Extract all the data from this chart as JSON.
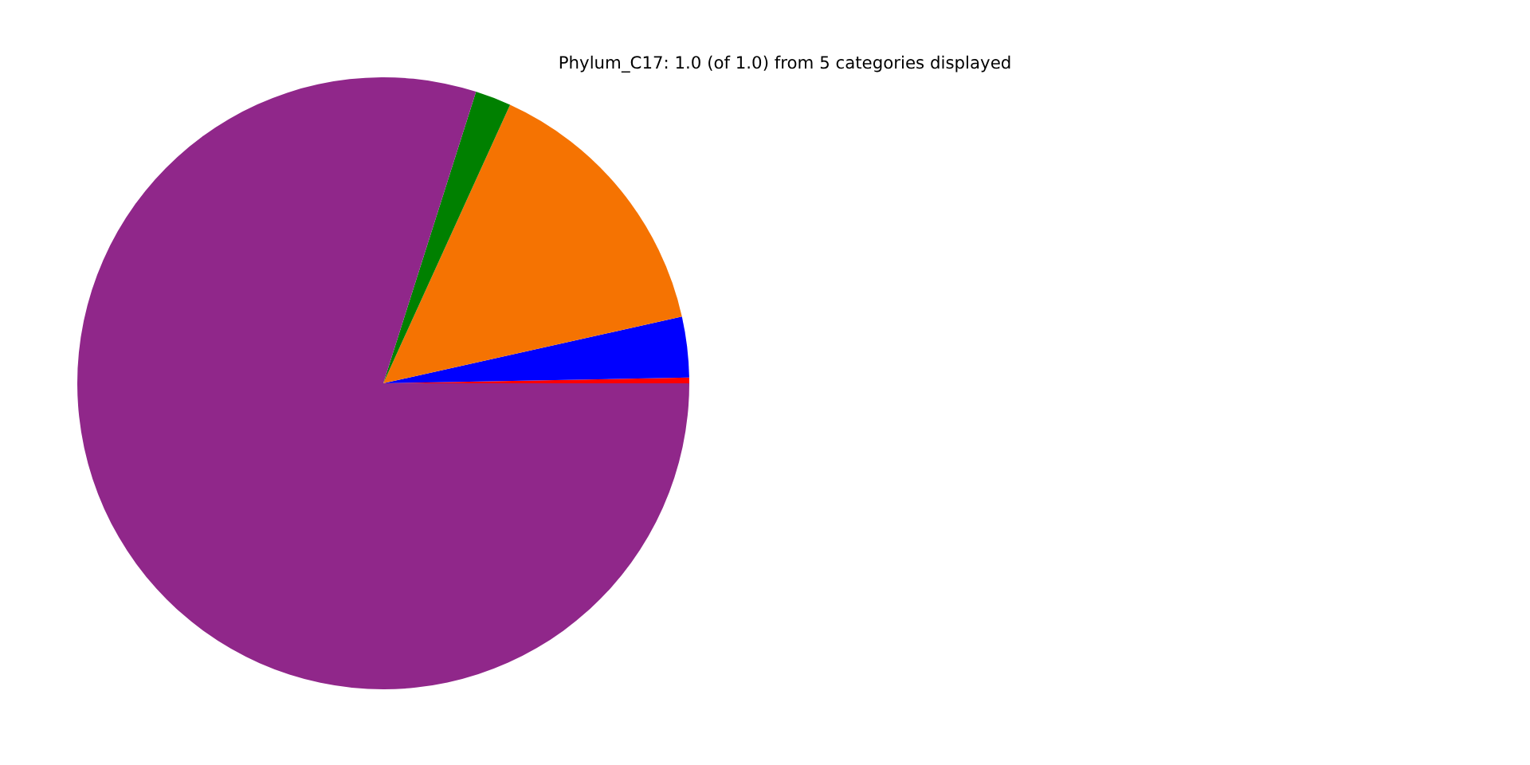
{
  "chart_data": {
    "type": "pie",
    "title": "Phylum_C17: 1.0 (of 1.0) from 5 categories displayed",
    "categories": [
      null,
      null,
      null,
      null,
      null
    ],
    "values": [
      0.3,
      3.2,
      14.7,
      1.9,
      79.9
    ],
    "colors": [
      "#ff0000",
      "#0000ff",
      "#f57302",
      "#008000",
      "#90278a"
    ]
  }
}
